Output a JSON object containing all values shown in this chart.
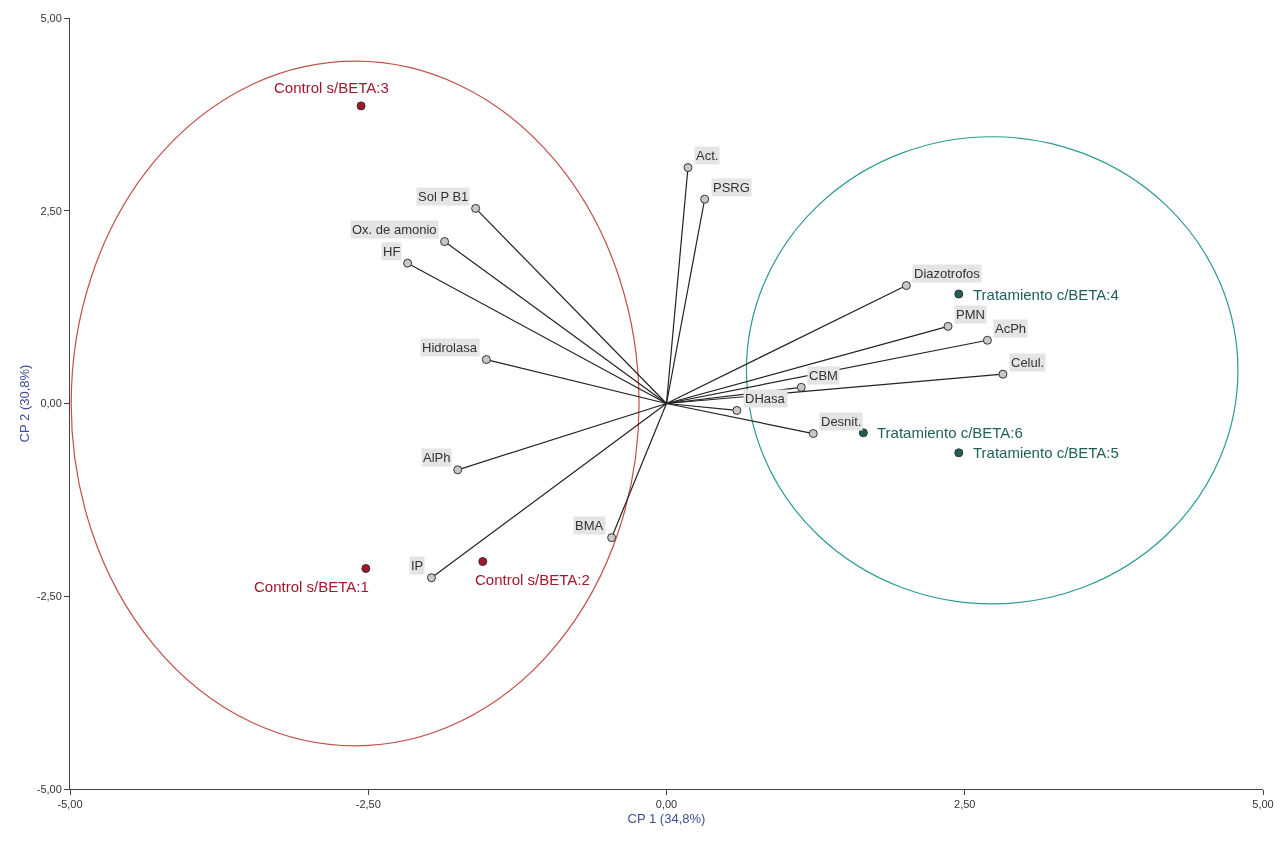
{
  "chart_data": {
    "type": "scatter",
    "xlabel": "CP 1 (34,8%)",
    "ylabel": "CP 2 (30,8%)",
    "xlim": [
      -5,
      5
    ],
    "ylim": [
      -5,
      5
    ],
    "xticks": [
      {
        "value": -5,
        "label": "-5,00"
      },
      {
        "value": -2.5,
        "label": "-2,50"
      },
      {
        "value": 0,
        "label": "0,00"
      },
      {
        "value": 2.5,
        "label": "2,50"
      },
      {
        "value": 5,
        "label": "5,00"
      }
    ],
    "yticks": [
      {
        "value": -5,
        "label": "-5,00"
      },
      {
        "value": -2.5,
        "label": "-2,50"
      },
      {
        "value": 0,
        "label": "0,00"
      },
      {
        "value": 2.5,
        "label": "2,50"
      },
      {
        "value": 5,
        "label": "5,00"
      }
    ],
    "grid": false,
    "series": [
      {
        "type": "line",
        "color": "#222222",
        "marker": "none",
        "x": [
          0,
          0.18,
          null,
          0,
          0.32,
          null,
          0,
          -1.6,
          null,
          0,
          -1.86,
          null,
          0,
          -2.17,
          null,
          0,
          -1.51,
          null,
          0,
          -1.75,
          null,
          0,
          -1.97,
          null,
          0,
          -0.46,
          null,
          0,
          2.01,
          null,
          0,
          2.36,
          null,
          0,
          2.69,
          null,
          0,
          2.82,
          null,
          0,
          1.13,
          null,
          0,
          0.59,
          null,
          0,
          1.23
        ],
        "values": [
          0,
          3.06,
          null,
          0,
          2.65,
          null,
          0,
          2.53,
          null,
          0,
          2.1,
          null,
          0,
          1.82,
          null,
          0,
          0.57,
          null,
          0,
          -0.86,
          null,
          0,
          -2.26,
          null,
          0,
          -1.74,
          null,
          0,
          1.53,
          null,
          0,
          1.0,
          null,
          0,
          0.82,
          null,
          0,
          0.38,
          null,
          0,
          0.21,
          null,
          0,
          -0.09,
          null,
          0,
          -0.39
        ]
      },
      {
        "type": "scatter",
        "color": "#c8c8c8",
        "marker": "circle",
        "x": [
          0.18,
          0.32,
          -1.6,
          -1.86,
          -2.17,
          -1.51,
          -1.75,
          -1.97,
          -0.46,
          2.01,
          2.36,
          2.69,
          2.82,
          1.13,
          0.59,
          1.23
        ],
        "values": [
          3.06,
          2.65,
          2.53,
          2.1,
          1.82,
          0.57,
          -0.86,
          -2.26,
          -1.74,
          1.53,
          1.0,
          0.82,
          0.38,
          0.21,
          -0.09,
          -0.39
        ]
      },
      {
        "type": "scatter",
        "color": "#a3162b",
        "marker": "circle",
        "x": [
          -2.56,
          -2.52,
          -1.54
        ],
        "values": [
          3.86,
          -2.14,
          -2.05
        ]
      },
      {
        "type": "scatter",
        "color": "#1f5f5a",
        "marker": "circle",
        "x": [
          2.45,
          1.65,
          2.45
        ],
        "values": [
          1.42,
          -0.38,
          -0.64
        ]
      }
    ],
    "annotations": [
      {
        "text": "Act.",
        "x": 0.18,
        "y": 3.06
      },
      {
        "text": "PSRG",
        "x": 0.32,
        "y": 2.65
      },
      {
        "text": "Sol P B1",
        "x": -1.6,
        "y": 2.53
      },
      {
        "text": "Ox. de amonio",
        "x": -1.86,
        "y": 2.1
      },
      {
        "text": "HF",
        "x": -2.17,
        "y": 1.82
      },
      {
        "text": "Hidrolasa",
        "x": -1.51,
        "y": 0.57
      },
      {
        "text": "AlPh",
        "x": -1.75,
        "y": -0.86
      },
      {
        "text": "IP",
        "x": -1.97,
        "y": -2.26
      },
      {
        "text": "BMA",
        "x": -0.46,
        "y": -1.74
      },
      {
        "text": "Diazotrofos",
        "x": 2.01,
        "y": 1.53
      },
      {
        "text": "PMN",
        "x": 2.36,
        "y": 1.0
      },
      {
        "text": "AcPh",
        "x": 2.69,
        "y": 0.82
      },
      {
        "text": "Celul.",
        "x": 2.82,
        "y": 0.38
      },
      {
        "text": "CBM",
        "x": 1.13,
        "y": 0.21
      },
      {
        "text": "DHasa",
        "x": 0.59,
        "y": -0.09
      },
      {
        "text": "Desnit.",
        "x": 1.23,
        "y": -0.39
      },
      {
        "text": "Control s/BETA:3",
        "x": -2.56,
        "y": 3.86
      },
      {
        "text": "Control s/BETA:1",
        "x": -2.52,
        "y": -2.14
      },
      {
        "text": "Control s/BETA:2",
        "x": -1.54,
        "y": -2.05
      },
      {
        "text": "Tratamiento c/BETA:4",
        "x": 2.45,
        "y": 1.42
      },
      {
        "text": "Tratamiento c/BETA:6",
        "x": 1.65,
        "y": -0.38
      },
      {
        "text": "Tratamiento c/BETA:5",
        "x": 2.45,
        "y": -0.64
      }
    ]
  }
}
